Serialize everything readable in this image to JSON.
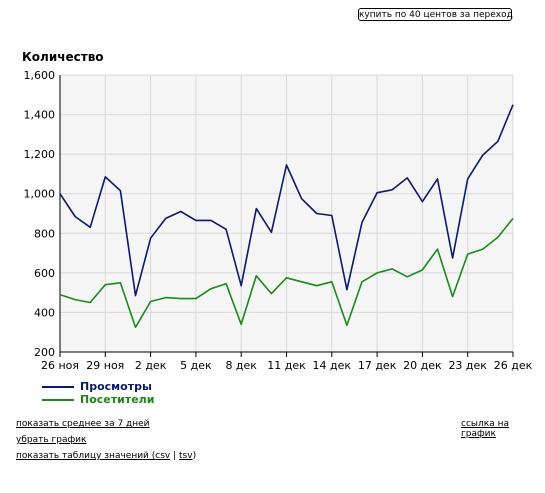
{
  "toolbar": {
    "buy_label": "купить по 40 центов за переход"
  },
  "links": {
    "avg7": "показать среднее за 7 дней",
    "remove": "убрать график",
    "table_prefix": "показать таблицу значений (",
    "csv": "csv",
    "sep": " | ",
    "tsv": "tsv",
    "table_suffix": ")",
    "chart_link": "ссылка на график"
  },
  "colors": {
    "views": "#0a1a6e",
    "visitors": "#1a8a1a",
    "plot_bg": "#f5f5f5",
    "grid": "#d8d8d8"
  },
  "chart_data": {
    "type": "line",
    "title": "Количество",
    "xlabel": "",
    "ylabel": "",
    "ylim": [
      200,
      1600
    ],
    "yticks": [
      200,
      400,
      600,
      800,
      1000,
      1200,
      1400,
      1600
    ],
    "ytick_labels": [
      "200",
      "400",
      "600",
      "800",
      "1,000",
      "1,200",
      "1,400",
      "1,600"
    ],
    "xticks": [
      {
        "index": 0,
        "label": "26 ноя"
      },
      {
        "index": 3,
        "label": "29 ноя"
      },
      {
        "index": 6,
        "label": "2 дек"
      },
      {
        "index": 9,
        "label": "5 дек"
      },
      {
        "index": 12,
        "label": "8 дек"
      },
      {
        "index": 15,
        "label": "11 дек"
      },
      {
        "index": 18,
        "label": "14 дек"
      },
      {
        "index": 21,
        "label": "17 дек"
      },
      {
        "index": 24,
        "label": "20 дек"
      },
      {
        "index": 27,
        "label": "23 дек"
      },
      {
        "index": 30,
        "label": "26 дек"
      }
    ],
    "categories": [
      "26 ноя",
      "27 ноя",
      "28 ноя",
      "29 ноя",
      "30 ноя",
      "1 дек",
      "2 дек",
      "3 дек",
      "4 дек",
      "5 дек",
      "6 дек",
      "7 дек",
      "8 дек",
      "9 дек",
      "10 дек",
      "11 дек",
      "12 дек",
      "13 дек",
      "14 дек",
      "15 дек",
      "16 дек",
      "17 дек",
      "18 дек",
      "19 дек",
      "20 дек",
      "21 дек",
      "22 дек",
      "23 дек",
      "24 дек",
      "25 дек",
      "26 дек"
    ],
    "grid": true,
    "legend": "bottom-left",
    "series": [
      {
        "name": "Просмотры",
        "color": "#0a1a6e",
        "values": [
          1000,
          885,
          830,
          1085,
          1015,
          485,
          775,
          875,
          910,
          865,
          865,
          820,
          535,
          925,
          805,
          1145,
          975,
          900,
          890,
          515,
          855,
          1005,
          1020,
          1080,
          960,
          1075,
          675,
          1075,
          1195,
          1265,
          1450
        ]
      },
      {
        "name": "Посетители",
        "color": "#1a8a1a",
        "values": [
          490,
          465,
          450,
          540,
          550,
          325,
          455,
          475,
          470,
          470,
          520,
          545,
          340,
          585,
          495,
          575,
          555,
          535,
          555,
          335,
          555,
          600,
          620,
          580,
          615,
          720,
          480,
          695,
          720,
          780,
          875
        ]
      }
    ]
  }
}
